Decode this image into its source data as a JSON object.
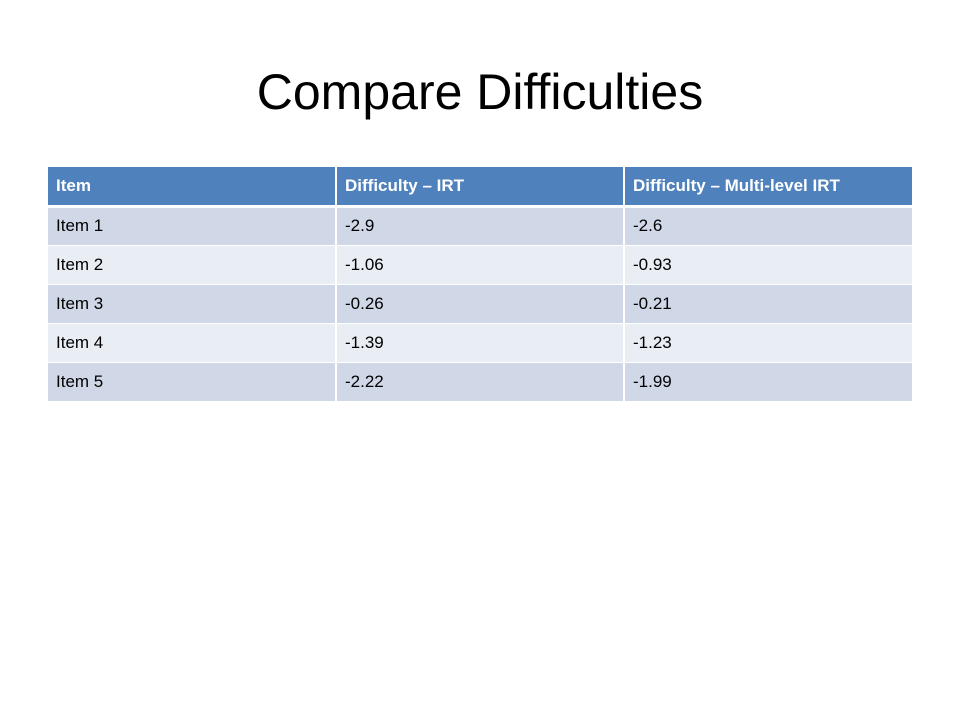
{
  "slide": {
    "title": "Compare Difficulties"
  },
  "table": {
    "headers": [
      "Item",
      "Difficulty – IRT",
      "Difficulty – Multi-level IRT"
    ],
    "rows": [
      [
        "Item 1",
        "-2.9",
        "-2.6"
      ],
      [
        "Item 2",
        "-1.06",
        "-0.93"
      ],
      [
        "Item 3",
        "-0.26",
        "-0.21"
      ],
      [
        "Item 4",
        "-1.39",
        "-1.23"
      ],
      [
        "Item 5",
        "-2.22",
        "-1.99"
      ]
    ]
  },
  "colors": {
    "header_bg": "#4f81bd",
    "header_text": "#ffffff",
    "row_odd_bg": "#d0d8e8",
    "row_even_bg": "#e9edf4"
  }
}
